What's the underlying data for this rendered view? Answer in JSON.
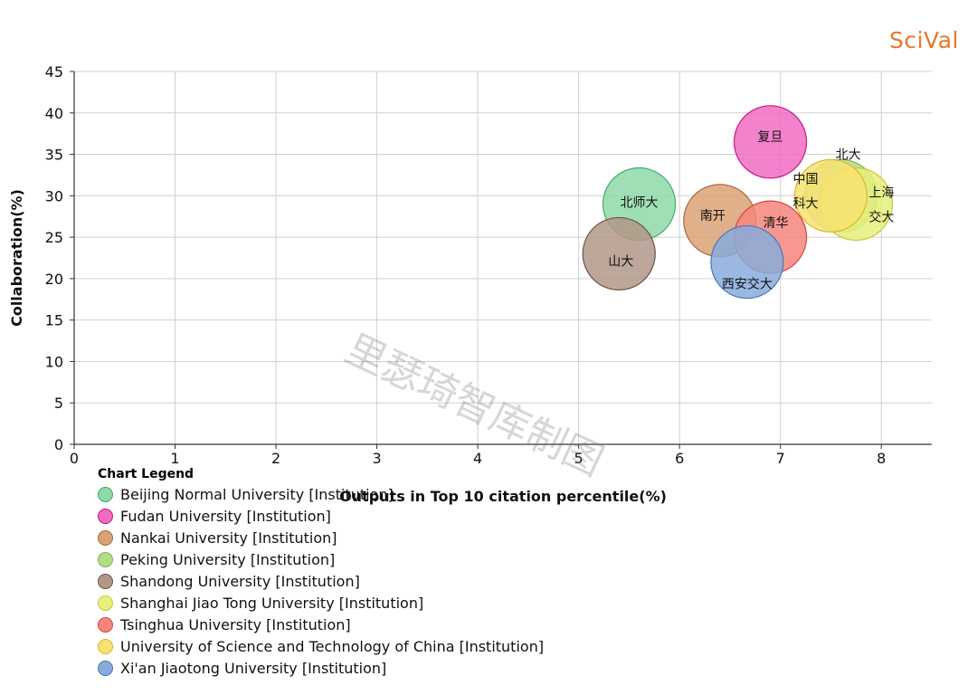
{
  "brand": "SciVal",
  "watermark": "里瑟琦智库制图",
  "legend": {
    "title": "Chart Legend",
    "items": [
      {
        "label": "Beijing Normal University [Institution]",
        "color": "#8fd9a8",
        "stroke": "#3fae6a"
      },
      {
        "label": "Fudan University [Institution]",
        "color": "#f06cc2",
        "stroke": "#c01a8a"
      },
      {
        "label": "Nankai University [Institution]",
        "color": "#d9a276",
        "stroke": "#a8683c"
      },
      {
        "label": "Peking University [Institution]",
        "color": "#b6dc86",
        "stroke": "#7fb24a"
      },
      {
        "label": "Shandong University [Institution]",
        "color": "#b09888",
        "stroke": "#6e5444"
      },
      {
        "label": "Shanghai Jiao Tong University [Institution]",
        "color": "#e6f07a",
        "stroke": "#c2cc3a"
      },
      {
        "label": "Tsinghua University [Institution]",
        "color": "#f6867c",
        "stroke": "#d8453a"
      },
      {
        "label": "University of Science and Technology of China [Institution]",
        "color": "#f8e272",
        "stroke": "#d8b62a"
      },
      {
        "label": "Xi'an Jiaotong University [Institution]",
        "color": "#88acdc",
        "stroke": "#4a76b8"
      }
    ]
  },
  "chart_data": {
    "type": "scatter",
    "xlabel": "Outputs in Top 10 citation percentile(%)",
    "ylabel": "Collaboration(%)",
    "xlim": [
      0,
      8.5
    ],
    "ylim": [
      0,
      45
    ],
    "xticks": [
      0,
      1,
      2,
      3,
      4,
      5,
      6,
      7,
      8
    ],
    "yticks": [
      0,
      5,
      10,
      15,
      20,
      25,
      30,
      35,
      40,
      45
    ],
    "grid": true,
    "points": [
      {
        "name": "Peking University [Institution]",
        "label_lines": [
          "北大"
        ],
        "x": 7.6,
        "y": 30.0
      },
      {
        "name": "Shanghai Jiao Tong University [Institution]",
        "label_lines": [
          "上海",
          "交大"
        ],
        "x": 7.75,
        "y": 29.0
      },
      {
        "name": "University of Science and Technology of China [Institution]",
        "label_lines": [
          "中国",
          "科大"
        ],
        "x": 7.5,
        "y": 30.0
      },
      {
        "name": "Beijing Normal University [Institution]",
        "label_lines": [
          "北师大"
        ],
        "x": 5.6,
        "y": 29.0
      },
      {
        "name": "Nankai University [Institution]",
        "label_lines": [
          "南开"
        ],
        "x": 6.4,
        "y": 27.0
      },
      {
        "name": "Tsinghua University [Institution]",
        "label_lines": [
          "清华"
        ],
        "x": 6.9,
        "y": 25.0
      },
      {
        "name": "Fudan University [Institution]",
        "label_lines": [
          "复旦"
        ],
        "x": 6.9,
        "y": 36.5
      },
      {
        "name": "Shandong University [Institution]",
        "label_lines": [
          "山大"
        ],
        "x": 5.4,
        "y": 23.0
      },
      {
        "name": "Xi'an Jiaotong University [Institution]",
        "label_lines": [
          "西安交大"
        ],
        "x": 6.67,
        "y": 22.0
      }
    ]
  }
}
